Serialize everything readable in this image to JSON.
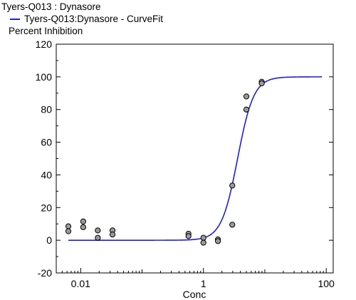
{
  "chart_data": {
    "type": "scatter",
    "title": "Tyers-Q013  : Dynasore",
    "xlabel": "Conc",
    "ylabel": "Percent Inhibition",
    "xscale": "log",
    "xlim": [
      0.004,
      130
    ],
    "ylim": [
      -20,
      120
    ],
    "xticks": [
      {
        "value": 0.01,
        "label": "0.01"
      },
      {
        "value": 1,
        "label": "1"
      },
      {
        "value": 100,
        "label": "100"
      }
    ],
    "yticks": [
      {
        "value": -20,
        "label": "-20"
      },
      {
        "value": 0,
        "label": "0"
      },
      {
        "value": 20,
        "label": "20"
      },
      {
        "value": 40,
        "label": "40"
      },
      {
        "value": 60,
        "label": "60"
      },
      {
        "value": 80,
        "label": "80"
      },
      {
        "value": 100,
        "label": "100"
      },
      {
        "value": 120,
        "label": "120"
      }
    ],
    "grid": false,
    "legend": "top-left",
    "points": [
      {
        "x": 0.0063,
        "y": 8.5
      },
      {
        "x": 0.0063,
        "y": 5.5
      },
      {
        "x": 0.011,
        "y": 11.5
      },
      {
        "x": 0.011,
        "y": 8
      },
      {
        "x": 0.019,
        "y": 6
      },
      {
        "x": 0.019,
        "y": 1.5
      },
      {
        "x": 0.033,
        "y": 6
      },
      {
        "x": 0.033,
        "y": 3.5
      },
      {
        "x": 0.57,
        "y": 4
      },
      {
        "x": 0.57,
        "y": 2.5
      },
      {
        "x": 1.0,
        "y": 1.5
      },
      {
        "x": 1.0,
        "y": -1.5
      },
      {
        "x": 1.72,
        "y": 0.5
      },
      {
        "x": 1.72,
        "y": -0.5
      },
      {
        "x": 2.95,
        "y": 33.5
      },
      {
        "x": 2.95,
        "y": 9.5
      },
      {
        "x": 5.0,
        "y": 88
      },
      {
        "x": 5.0,
        "y": 80
      },
      {
        "x": 8.9,
        "y": 97
      },
      {
        "x": 8.9,
        "y": 96
      }
    ],
    "series": [
      {
        "name": "Tyers-Q013:Dynasore - CurveFit",
        "type": "line",
        "color": "#1f1fd6",
        "model": "four-parameter-logistic",
        "bottom": 0,
        "top": 100,
        "ec50": 3.6,
        "hill": 3.3,
        "x_range": [
          0.0063,
          85
        ]
      }
    ],
    "point_color": "#9a9a9a"
  }
}
